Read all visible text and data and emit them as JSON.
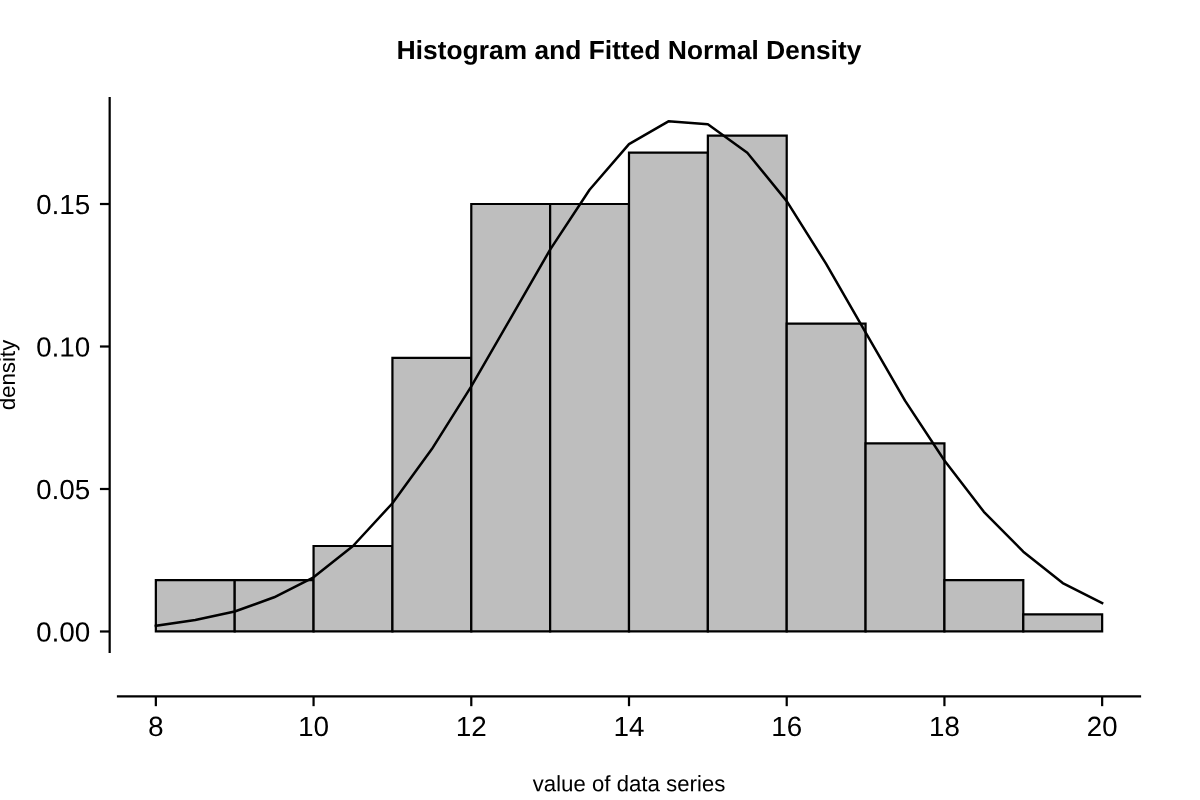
{
  "chart_data": {
    "type": "histogram",
    "title": "Histogram and Fitted Normal Density",
    "xlabel": "value of data series",
    "ylabel": "density",
    "bins": [
      8,
      9,
      10,
      11,
      12,
      13,
      14,
      15,
      16,
      17,
      18,
      19,
      20
    ],
    "series": [
      {
        "color": "#bebebe",
        "values": [
          0.018,
          0.018,
          0.03,
          0.096,
          0.15,
          0.15,
          0.168,
          0.174,
          0.108,
          0.066,
          0.018,
          0.006
        ]
      },
      {
        "type": "line",
        "color": "#000000",
        "x": [
          8,
          8.5,
          9,
          9.5,
          10,
          10.5,
          11,
          11.5,
          12,
          12.5,
          13,
          13.5,
          14,
          14.5,
          15,
          15.5,
          16,
          16.5,
          17,
          17.5,
          18,
          18.5,
          19,
          19.5,
          20
        ],
        "values": [
          0.002,
          0.004,
          0.007,
          0.012,
          0.019,
          0.03,
          0.045,
          0.064,
          0.086,
          0.11,
          0.134,
          0.155,
          0.171,
          0.179,
          0.178,
          0.168,
          0.151,
          0.129,
          0.105,
          0.081,
          0.06,
          0.042,
          0.028,
          0.017,
          0.01
        ]
      }
    ],
    "xlim": [
      7.52,
      20.48
    ],
    "ylim": [
      -0.0072,
      0.1872
    ],
    "xticks": [
      8,
      10,
      12,
      14,
      16,
      18,
      20
    ],
    "yticks": [
      {
        "value": 0,
        "label": "0.00"
      },
      {
        "value": 0.05,
        "label": "0.05"
      },
      {
        "value": 0.1,
        "label": "0.10"
      },
      {
        "value": 0.15,
        "label": "0.15"
      }
    ]
  }
}
